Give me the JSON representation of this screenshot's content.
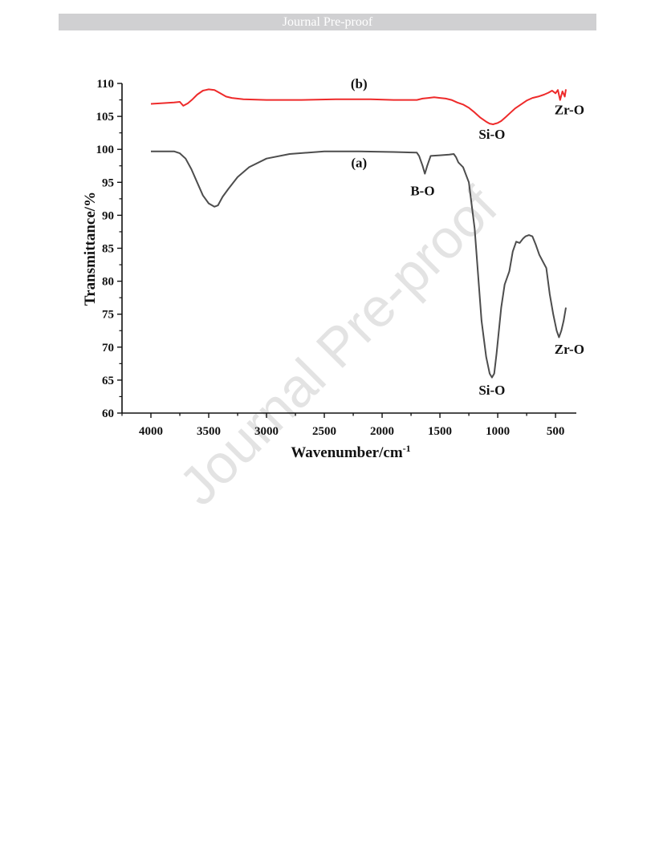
{
  "header": {
    "banner_text": "Journal Pre-proof"
  },
  "watermark": {
    "text": "Journal Pre-proof"
  },
  "chart_data": {
    "type": "line",
    "xlabel": "Wavenumber/cm",
    "xlabel_sup": "-1",
    "ylabel": "Transmittance/%",
    "xlim": [
      4250,
      320
    ],
    "ylim": [
      60,
      110
    ],
    "x_ticks": [
      4000,
      3500,
      3000,
      2500,
      2000,
      1500,
      1000,
      500
    ],
    "y_ticks": [
      60,
      65,
      70,
      75,
      80,
      85,
      90,
      95,
      100,
      105,
      110
    ],
    "grid": false,
    "colors": {
      "a": "#4d4d4d",
      "b": "#ee2a2a",
      "axis": "#111111"
    },
    "series": [
      {
        "name": "(a)",
        "x": [
          4000,
          3800,
          3750,
          3700,
          3650,
          3600,
          3550,
          3500,
          3450,
          3420,
          3380,
          3330,
          3250,
          3150,
          3000,
          2800,
          2500,
          2200,
          1900,
          1700,
          1680,
          1650,
          1630,
          1610,
          1580,
          1500,
          1420,
          1380,
          1360,
          1340,
          1300,
          1250,
          1200,
          1170,
          1140,
          1100,
          1070,
          1050,
          1030,
          1010,
          990,
          970,
          940,
          900,
          870,
          840,
          810,
          780,
          760,
          730,
          700,
          670,
          640,
          610,
          580,
          550,
          520,
          490,
          470,
          450,
          430,
          410
        ],
        "y": [
          99.7,
          99.7,
          99.4,
          98.6,
          97.0,
          95.0,
          93.0,
          91.8,
          91.3,
          91.5,
          92.8,
          94.0,
          95.8,
          97.3,
          98.6,
          99.3,
          99.7,
          99.7,
          99.6,
          99.5,
          99.0,
          97.5,
          96.3,
          97.5,
          99.0,
          99.1,
          99.2,
          99.3,
          98.8,
          98.0,
          97.3,
          95.0,
          88.0,
          81.0,
          74.0,
          68.5,
          66.0,
          65.4,
          66.0,
          69.0,
          72.5,
          76.0,
          79.5,
          81.5,
          84.5,
          86.0,
          85.8,
          86.5,
          86.8,
          87.0,
          86.8,
          85.5,
          84.0,
          83.0,
          82.0,
          78.0,
          75.0,
          72.5,
          71.5,
          72.5,
          74.0,
          76.0
        ]
      },
      {
        "name": "(b)",
        "x": [
          4000,
          3800,
          3750,
          3720,
          3680,
          3640,
          3600,
          3550,
          3500,
          3450,
          3400,
          3350,
          3300,
          3200,
          3000,
          2700,
          2400,
          2100,
          1900,
          1700,
          1650,
          1600,
          1550,
          1500,
          1450,
          1400,
          1350,
          1300,
          1250,
          1200,
          1150,
          1100,
          1070,
          1040,
          1020,
          1000,
          970,
          930,
          900,
          850,
          800,
          750,
          700,
          650,
          600,
          560,
          530,
          500,
          480,
          460,
          440,
          420,
          410
        ],
        "y": [
          106.9,
          107.1,
          107.2,
          106.6,
          107.0,
          107.6,
          108.3,
          108.9,
          109.1,
          109.0,
          108.5,
          108.0,
          107.8,
          107.6,
          107.5,
          107.5,
          107.6,
          107.6,
          107.5,
          107.5,
          107.7,
          107.8,
          107.9,
          107.8,
          107.7,
          107.5,
          107.1,
          106.8,
          106.3,
          105.6,
          104.8,
          104.2,
          103.9,
          103.8,
          103.9,
          104.0,
          104.3,
          104.9,
          105.4,
          106.2,
          106.8,
          107.4,
          107.8,
          108.0,
          108.3,
          108.6,
          108.9,
          108.5,
          109.0,
          107.5,
          108.8,
          108.0,
          109.1
        ]
      }
    ],
    "annotations": [
      {
        "text": "(b)",
        "x": 2200,
        "y": 109.3,
        "color": "#ee2a2a"
      },
      {
        "text": "Si-O",
        "x": 1050,
        "y": 101.6,
        "color": "#111111"
      },
      {
        "text": "Zr-O",
        "x": 380,
        "y": 105.3,
        "color": "#111111"
      },
      {
        "text": "(a)",
        "x": 2200,
        "y": 97.3,
        "color": "#111111"
      },
      {
        "text": "B-O",
        "x": 1650,
        "y": 93.0,
        "color": "#111111"
      },
      {
        "text": "Si-O",
        "x": 1050,
        "y": 62.8,
        "color": "#111111"
      },
      {
        "text": "Zr-O",
        "x": 380,
        "y": 69.0,
        "color": "#111111"
      }
    ]
  }
}
